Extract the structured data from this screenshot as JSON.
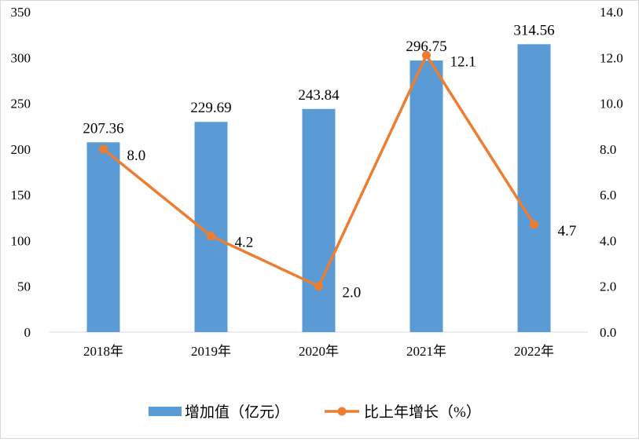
{
  "chart_data": {
    "type": "bar+line",
    "categories": [
      "2018年",
      "2019年",
      "2020年",
      "2021年",
      "2022年"
    ],
    "series": [
      {
        "name": "增加值（亿元）",
        "type": "bar",
        "axis": "left",
        "values": [
          207.36,
          229.69,
          243.84,
          296.75,
          314.56
        ],
        "labels": [
          "207.36",
          "229.69",
          "243.84",
          "296.75",
          "314.56"
        ],
        "color": "#5B9BD5"
      },
      {
        "name": "比上年增长（%）",
        "type": "line",
        "axis": "right",
        "values": [
          8.0,
          4.2,
          2.0,
          12.1,
          4.7
        ],
        "labels": [
          "8.0",
          "4.2",
          "2.0",
          "12.1",
          "4.7"
        ],
        "color": "#ED7D31"
      }
    ],
    "y_left": {
      "range": [
        0,
        350
      ],
      "ticks": [
        "0",
        "50",
        "100",
        "150",
        "200",
        "250",
        "300",
        "350"
      ]
    },
    "y_right": {
      "range": [
        0,
        14
      ],
      "ticks": [
        "0.0",
        "2.0",
        "4.0",
        "6.0",
        "8.0",
        "10.0",
        "12.0",
        "14.0"
      ]
    },
    "grid": false,
    "legend": "bottom"
  }
}
